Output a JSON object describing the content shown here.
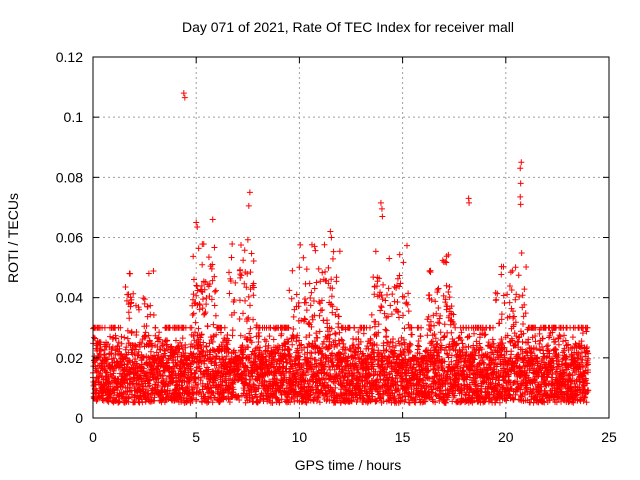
{
  "chart_data": {
    "type": "scatter",
    "title": "Day 071 of 2021, Rate Of TEC Index for receiver mall",
    "xlabel": "GPS time / hours",
    "ylabel": "ROTI / TECUs",
    "xlim": [
      0,
      25
    ],
    "ylim": [
      0,
      0.12
    ],
    "xticks": [
      0,
      5,
      10,
      15,
      20,
      25
    ],
    "xtick_labels": [
      "0",
      "5",
      "10",
      "15",
      "20",
      "25"
    ],
    "yticks": [
      0,
      0.02,
      0.04,
      0.06,
      0.08,
      0.1,
      0.12
    ],
    "ytick_labels": [
      "0",
      "0.02",
      "0.04",
      "0.06",
      "0.08",
      "0.1",
      "0.12"
    ],
    "grid": true,
    "marker": "+",
    "series_color": "#ff0000",
    "x_range_observed": [
      0,
      24
    ],
    "typical_range": [
      0.005,
      0.03
    ],
    "outliers": [
      {
        "x": 4.4,
        "y": 0.108
      },
      {
        "x": 4.45,
        "y": 0.1065
      },
      {
        "x": 20.75,
        "y": 0.085
      },
      {
        "x": 20.7,
        "y": 0.083
      },
      {
        "x": 20.72,
        "y": 0.078
      },
      {
        "x": 20.7,
        "y": 0.0735
      },
      {
        "x": 20.72,
        "y": 0.071
      },
      {
        "x": 7.6,
        "y": 0.075
      },
      {
        "x": 7.55,
        "y": 0.0705
      },
      {
        "x": 13.95,
        "y": 0.0715
      },
      {
        "x": 14.0,
        "y": 0.0695
      },
      {
        "x": 14.02,
        "y": 0.067
      },
      {
        "x": 18.2,
        "y": 0.073
      },
      {
        "x": 18.22,
        "y": 0.0715
      },
      {
        "x": 5.0,
        "y": 0.065
      },
      {
        "x": 5.05,
        "y": 0.0635
      },
      {
        "x": 5.8,
        "y": 0.066
      },
      {
        "x": 11.5,
        "y": 0.062
      },
      {
        "x": 11.55,
        "y": 0.06
      }
    ],
    "peak_windows": [
      {
        "x_start": 1.5,
        "x_end": 3.0,
        "max_y": 0.05
      },
      {
        "x_start": 4.8,
        "x_end": 6.0,
        "max_y": 0.058
      },
      {
        "x_start": 6.5,
        "x_end": 8.0,
        "max_y": 0.06
      },
      {
        "x_start": 9.5,
        "x_end": 12.0,
        "max_y": 0.058
      },
      {
        "x_start": 13.5,
        "x_end": 15.3,
        "max_y": 0.058
      },
      {
        "x_start": 16.0,
        "x_end": 17.5,
        "max_y": 0.057
      },
      {
        "x_start": 19.5,
        "x_end": 21.0,
        "max_y": 0.055
      }
    ],
    "data_gaps_x": [
      4.6,
      7.0,
      15.6,
      16.0
    ]
  }
}
